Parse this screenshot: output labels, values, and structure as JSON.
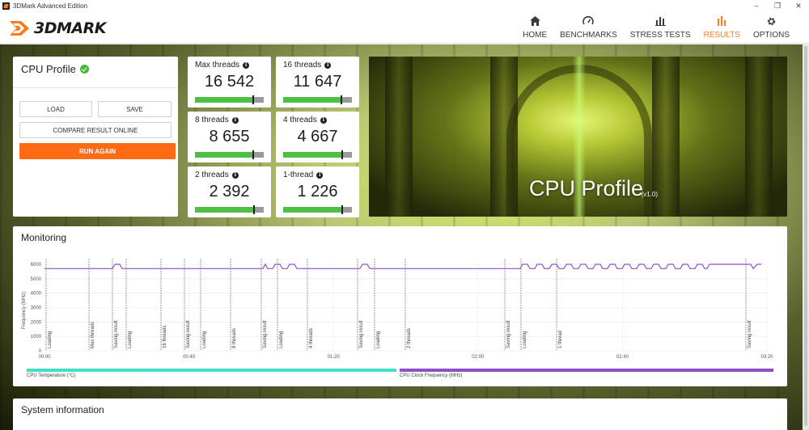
{
  "window": {
    "title": "3DMark Advanced Edition"
  },
  "app": {
    "logo_text": "3DMARK"
  },
  "nav": [
    {
      "label": "HOME",
      "icon": "home-icon"
    },
    {
      "label": "BENCHMARKS",
      "icon": "gauge-icon"
    },
    {
      "label": "STRESS TESTS",
      "icon": "bars-icon"
    },
    {
      "label": "RESULTS",
      "icon": "results-icon",
      "active": true
    },
    {
      "label": "OPTIONS",
      "icon": "gear-icon"
    }
  ],
  "profile": {
    "title": "CPU Profile",
    "load_label": "LOAD",
    "save_label": "SAVE",
    "compare_label": "COMPARE RESULT ONLINE",
    "run_label": "RUN AGAIN"
  },
  "tiles": [
    {
      "label": "Max threads",
      "score": "16 542",
      "fill": 0.85
    },
    {
      "label": "16 threads",
      "score": "11 647",
      "fill": 0.85
    },
    {
      "label": "8 threads",
      "score": "8 655",
      "fill": 0.85
    },
    {
      "label": "4 threads",
      "score": "4 667",
      "fill": 0.86
    },
    {
      "label": "2 threads",
      "score": "2 392",
      "fill": 0.86
    },
    {
      "label": "1-thread",
      "score": "1 226",
      "fill": 0.86
    }
  ],
  "hero": {
    "title": "CPU Profile",
    "version": "(v1.0)"
  },
  "monitoring": {
    "title": "Monitoring",
    "ylabel": "Frequency (MHz)",
    "yticks": [
      "6000",
      "5000",
      "4000",
      "3000",
      "2000",
      "1000",
      "0"
    ],
    "xticks": [
      "00:00",
      "00:40",
      "01:20",
      "02:00",
      "02:40",
      "03:20"
    ],
    "markers": [
      "Loading",
      "Max threads",
      "Saving result",
      "Loading",
      "16 threads",
      "Saving result",
      "Loading",
      "8 threads",
      "Saving result",
      "Loading",
      "4 threads",
      "Saving result",
      "Loading",
      "2 threads",
      "Saving result",
      "Loading",
      "1 thread",
      "Saving result"
    ],
    "legend": [
      {
        "label": "CPU Temperature (°C)",
        "color": "#3fe0c5"
      },
      {
        "label": "CPU Clock Frequency (MHz)",
        "color": "#8e4fc9"
      }
    ]
  },
  "system_info": {
    "title": "System information"
  }
}
